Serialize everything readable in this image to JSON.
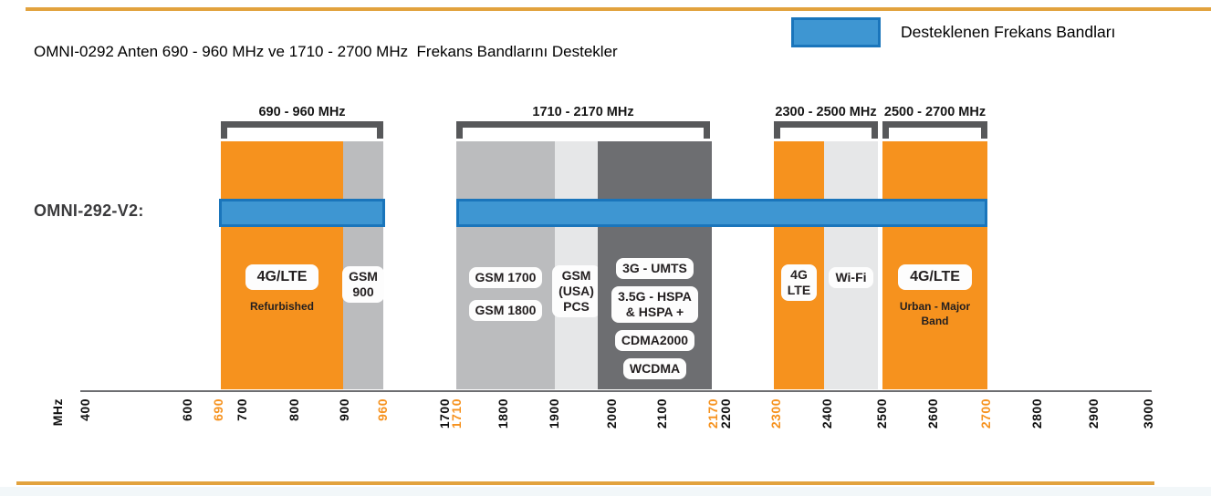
{
  "title": "OMNI-0292 Anten 690 - 960 MHz ve 1710 - 2700 MHz  Frekans Bandlarını Destekler",
  "legend": {
    "label": "Desteklenen Frekans Bandları"
  },
  "colors": {
    "orange": "#F6921E",
    "gray_medium": "#BBBCBE",
    "gray_light": "#E6E7E8",
    "gray_dark": "#6D6E71",
    "blue_fill": "#3E96D2",
    "blue_border": "#1A75BB",
    "bracket": "#57585A",
    "rule_orange": "#E2A23E",
    "accent_text": "#F6921E"
  },
  "axis": {
    "unit": "MHz"
  },
  "chart_data": {
    "type": "bar",
    "subtype": "frequency-spectrum-bands",
    "title": "OMNI-0292 Anten 690 - 960 MHz ve 1710 - 2700 MHz  Frekans Bandlarını Destekler",
    "unit": "MHz",
    "xlim": [
      400,
      3000
    ],
    "axis_ticks": [
      400,
      600,
      690,
      700,
      800,
      900,
      960,
      1700,
      1710,
      1800,
      1900,
      2000,
      2100,
      2170,
      2200,
      2300,
      2400,
      2500,
      2600,
      2700,
      2800,
      2900,
      3000
    ],
    "accent_ticks": [
      690,
      960,
      1710,
      2170,
      2300,
      2700
    ],
    "range_brackets": [
      {
        "label": "690 - 960 MHz",
        "from": 690,
        "to": 960
      },
      {
        "label": "1710 - 2170 MHz",
        "from": 1710,
        "to": 2170
      },
      {
        "label": "2300 - 2500 MHz",
        "from": 2300,
        "to": 2500
      },
      {
        "label": "2500 - 2700 MHz",
        "from": 2500,
        "to": 2700
      }
    ],
    "bands": [
      {
        "from": 690,
        "to": 890,
        "color_key": "orange",
        "pills": [
          {
            "lines": [
              "4G/LTE"
            ],
            "big": true
          }
        ],
        "caption_lines": [
          "Refurbished"
        ]
      },
      {
        "from": 890,
        "to": 960,
        "color_key": "gray_medium",
        "pills": [
          {
            "lines": [
              "GSM",
              "900"
            ]
          }
        ]
      },
      {
        "from": 1710,
        "to": 1895,
        "color_key": "gray_medium",
        "pills": [
          {
            "lines": [
              "GSM 1700"
            ]
          },
          {
            "lines": [
              "GSM 1800"
            ]
          }
        ]
      },
      {
        "from": 1895,
        "to": 1975,
        "color_key": "gray_light",
        "pills": [
          {
            "lines": [
              "GSM",
              "(USA)",
              "PCS"
            ]
          }
        ]
      },
      {
        "from": 1975,
        "to": 2170,
        "color_key": "gray_dark",
        "pills": [
          {
            "lines": [
              "3G - UMTS"
            ]
          },
          {
            "lines": [
              "3.5G - HSPA",
              "& HSPA +"
            ]
          },
          {
            "lines": [
              "CDMA2000"
            ]
          },
          {
            "lines": [
              "WCDMA"
            ]
          }
        ]
      },
      {
        "from": 2300,
        "to": 2400,
        "color_key": "orange",
        "pills": [
          {
            "lines": [
              "4G",
              "LTE"
            ]
          }
        ]
      },
      {
        "from": 2400,
        "to": 2500,
        "color_key": "gray_light",
        "pills": [
          {
            "lines": [
              "Wi-Fi"
            ]
          }
        ]
      },
      {
        "from": 2500,
        "to": 2700,
        "color_key": "orange",
        "pills": [
          {
            "lines": [
              "4G/LTE"
            ],
            "big": true
          }
        ],
        "caption_lines": [
          "Urban - Major",
          "Band"
        ]
      }
    ],
    "supported": {
      "label": "OMNI-292-V2:",
      "ranges": [
        {
          "from": 690,
          "to": 960
        },
        {
          "from": 1710,
          "to": 2700
        }
      ]
    }
  }
}
